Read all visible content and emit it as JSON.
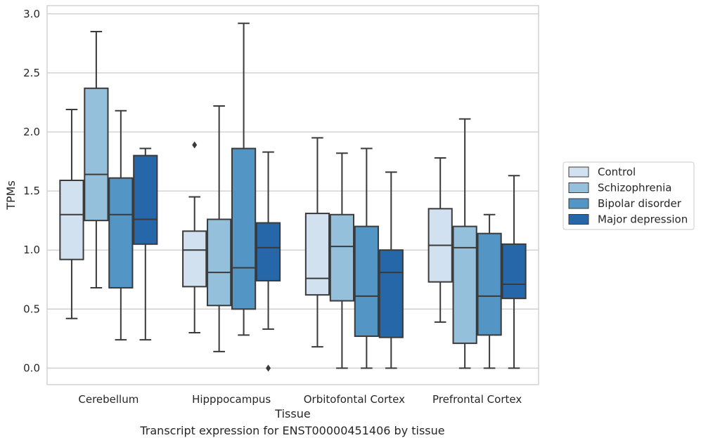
{
  "caption": "Transcript expression for ENST00000451406 by tissue",
  "colors": {
    "Control": "#d1e1f0",
    "Schizophrenia": "#95c0dc",
    "Bipolar disorder": "#5395c4",
    "Major depression": "#2567a8",
    "grid": "#cccccc",
    "line": "#3a3a3a"
  },
  "chart_data": {
    "type": "box",
    "title": "",
    "xlabel": "Tissue",
    "ylabel": "TPMs",
    "ylim": [
      -0.14,
      3.07
    ],
    "yticks": [
      0.0,
      0.5,
      1.0,
      1.5,
      2.0,
      2.5,
      3.0
    ],
    "ytick_labels": [
      "0.0",
      "0.5",
      "1.0",
      "1.5",
      "2.0",
      "2.5",
      "3.0"
    ],
    "grid": "horizontal",
    "legend_position": "right",
    "categories": [
      "Cerebellum",
      "Hipppocampus",
      "Orbitofontal Cortex",
      "Prefrontal Cortex"
    ],
    "series": [
      {
        "name": "Control",
        "boxes": [
          {
            "whislo": 0.42,
            "q1": 0.92,
            "med": 1.3,
            "q3": 1.59,
            "whishi": 2.19,
            "fliers": []
          },
          {
            "whislo": 0.3,
            "q1": 0.69,
            "med": 1.0,
            "q3": 1.16,
            "whishi": 1.45,
            "fliers": [
              1.89
            ]
          },
          {
            "whislo": 0.18,
            "q1": 0.62,
            "med": 0.76,
            "q3": 1.31,
            "whishi": 1.95,
            "fliers": []
          },
          {
            "whislo": 0.39,
            "q1": 0.73,
            "med": 1.04,
            "q3": 1.35,
            "whishi": 1.78,
            "fliers": []
          }
        ]
      },
      {
        "name": "Schizophrenia",
        "boxes": [
          {
            "whislo": 0.68,
            "q1": 1.25,
            "med": 1.64,
            "q3": 2.37,
            "whishi": 2.85,
            "fliers": []
          },
          {
            "whislo": 0.14,
            "q1": 0.53,
            "med": 0.81,
            "q3": 1.26,
            "whishi": 2.22,
            "fliers": []
          },
          {
            "whislo": 0.0,
            "q1": 0.57,
            "med": 1.03,
            "q3": 1.3,
            "whishi": 1.82,
            "fliers": []
          },
          {
            "whislo": 0.0,
            "q1": 0.21,
            "med": 1.02,
            "q3": 1.2,
            "whishi": 2.11,
            "fliers": []
          }
        ]
      },
      {
        "name": "Bipolar disorder",
        "boxes": [
          {
            "whislo": 0.24,
            "q1": 0.68,
            "med": 1.3,
            "q3": 1.61,
            "whishi": 2.18,
            "fliers": []
          },
          {
            "whislo": 0.28,
            "q1": 0.5,
            "med": 0.85,
            "q3": 1.86,
            "whishi": 2.92,
            "fliers": []
          },
          {
            "whislo": 0.0,
            "q1": 0.27,
            "med": 0.61,
            "q3": 1.2,
            "whishi": 1.86,
            "fliers": []
          },
          {
            "whislo": 0.0,
            "q1": 0.28,
            "med": 0.61,
            "q3": 1.14,
            "whishi": 1.3,
            "fliers": []
          }
        ]
      },
      {
        "name": "Major depression",
        "boxes": [
          {
            "whislo": 0.24,
            "q1": 1.05,
            "med": 1.26,
            "q3": 1.8,
            "whishi": 1.86,
            "fliers": []
          },
          {
            "whislo": 0.33,
            "q1": 0.74,
            "med": 1.02,
            "q3": 1.23,
            "whishi": 1.83,
            "fliers": [
              0.0
            ]
          },
          {
            "whislo": 0.0,
            "q1": 0.26,
            "med": 0.81,
            "q3": 1.0,
            "whishi": 1.66,
            "fliers": []
          },
          {
            "whislo": 0.0,
            "q1": 0.59,
            "med": 0.71,
            "q3": 1.05,
            "whishi": 1.63,
            "fliers": []
          }
        ]
      }
    ]
  }
}
